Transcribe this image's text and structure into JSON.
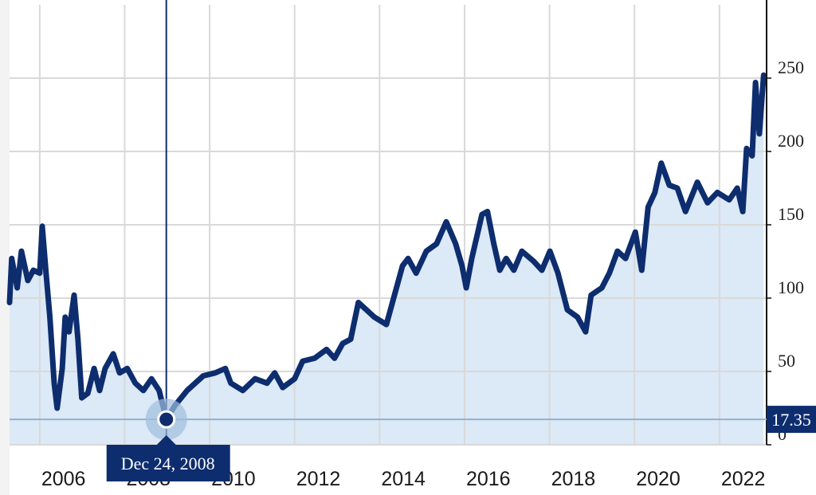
{
  "chart_data": {
    "type": "line",
    "color": "#0d2d6e",
    "fill": "#dce9f6",
    "grid": true,
    "x": [
      2005.29,
      2005.34,
      2005.47,
      2005.57,
      2005.72,
      2005.85,
      2006.0,
      2006.06,
      2006.15,
      2006.24,
      2006.34,
      2006.41,
      2006.53,
      2006.6,
      2006.69,
      2006.81,
      2006.9,
      2006.99,
      2007.13,
      2007.28,
      2007.41,
      2007.54,
      2007.73,
      2007.88,
      2008.06,
      2008.25,
      2008.44,
      2008.63,
      2008.81,
      2008.98,
      2009.19,
      2009.47,
      2009.85,
      2010.13,
      2010.37,
      2010.5,
      2010.78,
      2011.07,
      2011.35,
      2011.53,
      2011.72,
      2012.0,
      2012.19,
      2012.47,
      2012.75,
      2012.94,
      2013.13,
      2013.32,
      2013.5,
      2013.69,
      2013.88,
      2014.16,
      2014.35,
      2014.54,
      2014.67,
      2014.86,
      2015.1,
      2015.34,
      2015.57,
      2015.79,
      2015.94,
      2016.04,
      2016.17,
      2016.41,
      2016.54,
      2016.69,
      2016.83,
      2016.98,
      2017.16,
      2017.35,
      2017.63,
      2017.82,
      2018.01,
      2018.2,
      2018.42,
      2018.66,
      2018.85,
      2018.98,
      2019.23,
      2019.41,
      2019.6,
      2019.79,
      2020.02,
      2020.17,
      2020.32,
      2020.48,
      2020.63,
      2020.82,
      2021.01,
      2021.2,
      2021.48,
      2021.72,
      2021.95,
      2022.23,
      2022.42,
      2022.55,
      2022.64,
      2022.77,
      2022.85,
      2022.94,
      2023.04
    ],
    "values": [
      97,
      127,
      107,
      132,
      112,
      119,
      117,
      149,
      117,
      87,
      42,
      25,
      52,
      87,
      77,
      102,
      72,
      32,
      35,
      52,
      37,
      52,
      62,
      49,
      52,
      42,
      37,
      45,
      37,
      17.35,
      27,
      37,
      47,
      49,
      52,
      42,
      37,
      45,
      42,
      49,
      39,
      45,
      57,
      59,
      65,
      59,
      69,
      72,
      97,
      92,
      87,
      82,
      102,
      122,
      127,
      117,
      132,
      137,
      152,
      137,
      122,
      107,
      127,
      157,
      159,
      137,
      119,
      127,
      119,
      132,
      125,
      119,
      132,
      117,
      92,
      87,
      77,
      102,
      107,
      117,
      132,
      127,
      145,
      119,
      162,
      172,
      192,
      177,
      175,
      159,
      179,
      165,
      172,
      167,
      175,
      159,
      202,
      197,
      247,
      212,
      252
    ],
    "xlim": [
      2005.29,
      2023.11
    ],
    "ylim": [
      0,
      300
    ],
    "xticks": [
      2006,
      2008,
      2010,
      2012,
      2014,
      2016,
      2018,
      2020,
      2022
    ],
    "yticks": [
      0,
      50,
      100,
      150,
      200,
      250
    ],
    "crosshair": {
      "x": 2008.98,
      "label": "Dec 24, 2008",
      "value": 17.35
    }
  }
}
